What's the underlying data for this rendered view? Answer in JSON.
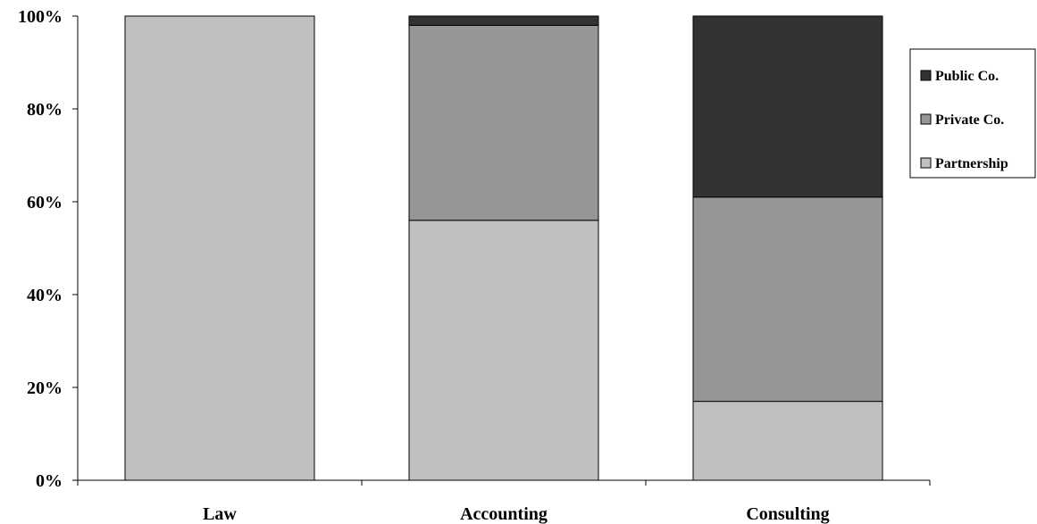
{
  "chart_data": {
    "type": "bar",
    "stacked": true,
    "categories": [
      "Law",
      "Accounting",
      "Consulting"
    ],
    "series": [
      {
        "name": "Partnership",
        "values": [
          100,
          56,
          17
        ],
        "color": "#c0c0c0"
      },
      {
        "name": "Private Co.",
        "values": [
          0,
          42,
          44
        ],
        "color": "#969696"
      },
      {
        "name": "Public Co.",
        "values": [
          0,
          2,
          39
        ],
        "color": "#333333"
      }
    ],
    "yticks": [
      "0%",
      "20%",
      "40%",
      "60%",
      "80%",
      "100%"
    ],
    "ylim": [
      0,
      100
    ],
    "grid": false,
    "legend_position": "right",
    "legend_order": [
      "Public Co.",
      "Private Co.",
      "Partnership"
    ]
  }
}
